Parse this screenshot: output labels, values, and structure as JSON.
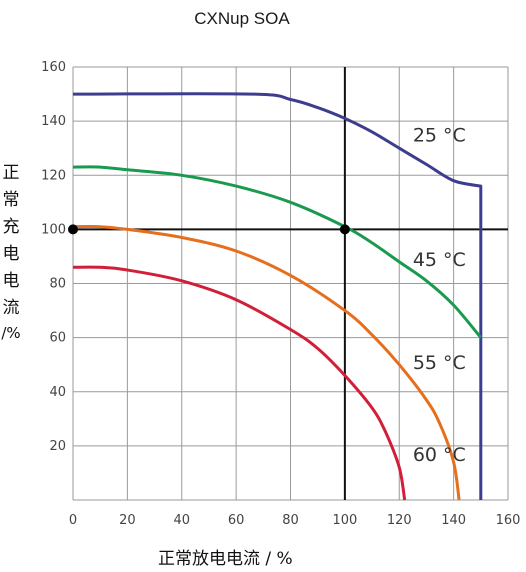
{
  "chart_data": {
    "type": "line",
    "title": "CXNup SOA",
    "xlabel": "正常放电电流 / %",
    "ylabel_chars": [
      "正",
      "常",
      "充",
      "电",
      "电",
      "流"
    ],
    "ylabel_unit": "/%",
    "xlim": [
      0,
      160
    ],
    "ylim": [
      0,
      160
    ],
    "xticks": [
      0,
      20,
      40,
      60,
      80,
      100,
      120,
      140,
      160
    ],
    "yticks": [
      20,
      40,
      60,
      80,
      100,
      120,
      140,
      160
    ],
    "grid": true,
    "reference_lines": {
      "x": 100,
      "y": 100,
      "color": "#111111"
    },
    "markers": [
      {
        "x": 0,
        "y": 100
      },
      {
        "x": 100,
        "y": 100
      }
    ],
    "series": [
      {
        "name": "25 °C",
        "color": "#3d3d8f",
        "x": [
          0,
          66,
          80,
          90,
          100,
          110,
          120,
          130,
          140,
          150,
          150
        ],
        "y": [
          150,
          150,
          148,
          145,
          141,
          136,
          130,
          124,
          118,
          116,
          0
        ]
      },
      {
        "name": "45 °C",
        "color": "#1a9a4e",
        "x": [
          0,
          10,
          20,
          40,
          60,
          80,
          100,
          110,
          120,
          130,
          140,
          150
        ],
        "y": [
          123,
          123,
          122,
          120,
          116,
          110,
          101,
          95,
          88,
          81,
          72,
          60
        ]
      },
      {
        "name": "55 °C",
        "color": "#e56f1d",
        "x": [
          0,
          10,
          20,
          40,
          60,
          80,
          100,
          110,
          120,
          130,
          135,
          140,
          142
        ],
        "y": [
          101,
          101,
          100,
          97,
          92,
          83,
          70,
          61,
          50,
          37,
          28,
          14,
          0
        ]
      },
      {
        "name": "60 °C",
        "color": "#d11f3a",
        "x": [
          0,
          10,
          20,
          40,
          60,
          80,
          90,
          100,
          110,
          115,
          120,
          122
        ],
        "y": [
          86,
          86,
          85,
          81,
          74,
          63,
          56,
          46,
          34,
          25,
          12,
          0
        ]
      }
    ],
    "labels": [
      {
        "text": "25 °C",
        "x": 125,
        "y": 135
      },
      {
        "text": "45 °C",
        "x": 125,
        "y": 89
      },
      {
        "text": "55 °C",
        "x": 125,
        "y": 51
      },
      {
        "text": "60 °C",
        "x": 125,
        "y": 17
      }
    ]
  }
}
